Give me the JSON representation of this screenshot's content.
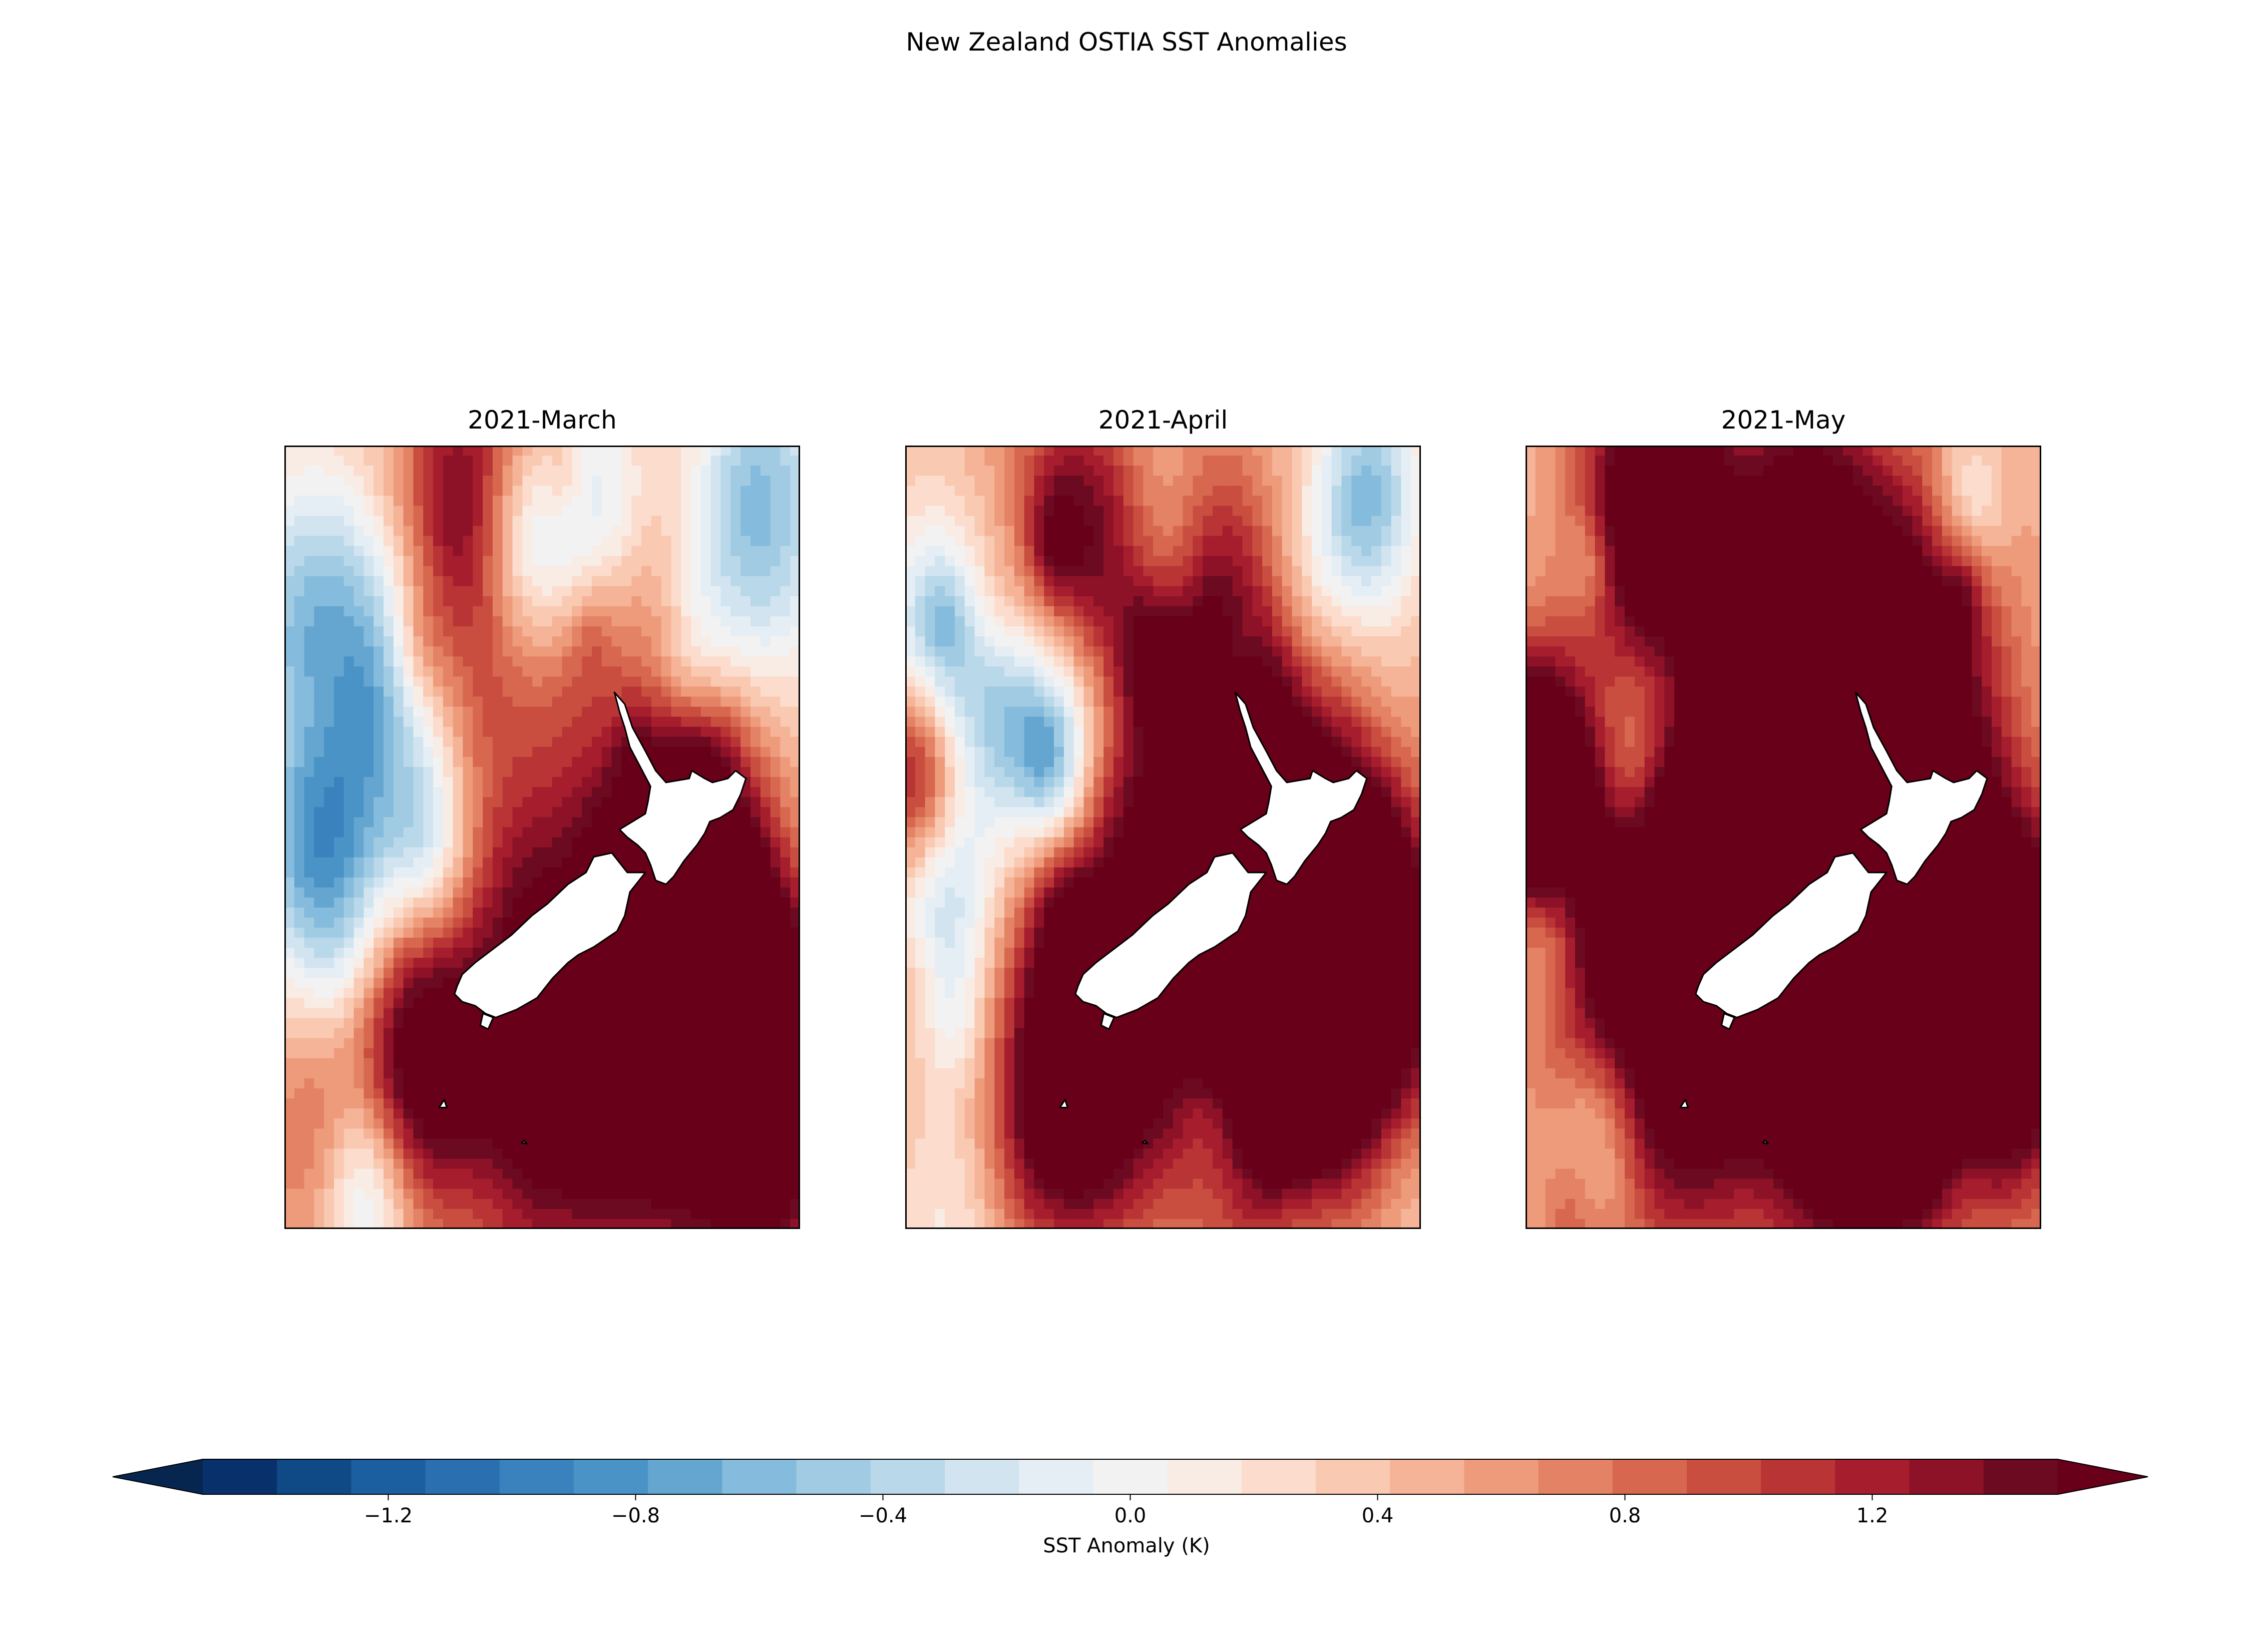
{
  "figure": {
    "title": "New Zealand OSTIA SST Anomalies"
  },
  "panels": [
    {
      "title": "2021-March"
    },
    {
      "title": "2021-April"
    },
    {
      "title": "2021-May"
    }
  ],
  "colorbar": {
    "label": "SST Anomaly (K)",
    "ticks": [
      "−1.2",
      "−0.8",
      "−0.4",
      "0.0",
      "0.4",
      "0.8",
      "1.2"
    ],
    "tick_values": [
      -1.2,
      -0.8,
      -0.4,
      0.0,
      0.4,
      0.8,
      1.2
    ],
    "range": [
      -1.5,
      1.5
    ],
    "level_step": 0.1,
    "extend": "both",
    "colormap": "RdBu_r",
    "colors": [
      "#08306b",
      "#0f4a86",
      "#1b5fa0",
      "#2a6fb0",
      "#3a82bd",
      "#4a93c7",
      "#65a6d1",
      "#85bbdc",
      "#a0cbe3",
      "#b9d8ea",
      "#d1e4f0",
      "#e5eef4",
      "#f2f2f2",
      "#f8ece5",
      "#fbdccd",
      "#f9c9b1",
      "#f5b397",
      "#ee9b7c",
      "#e48266",
      "#d7684f",
      "#c94e40",
      "#b93434",
      "#a61d2d",
      "#8d1227",
      "#6b0a20"
    ],
    "under_color": "#06264f",
    "over_color": "#670018"
  },
  "map": {
    "land_color": "#ffffff",
    "coast_color": "#000000"
  }
}
